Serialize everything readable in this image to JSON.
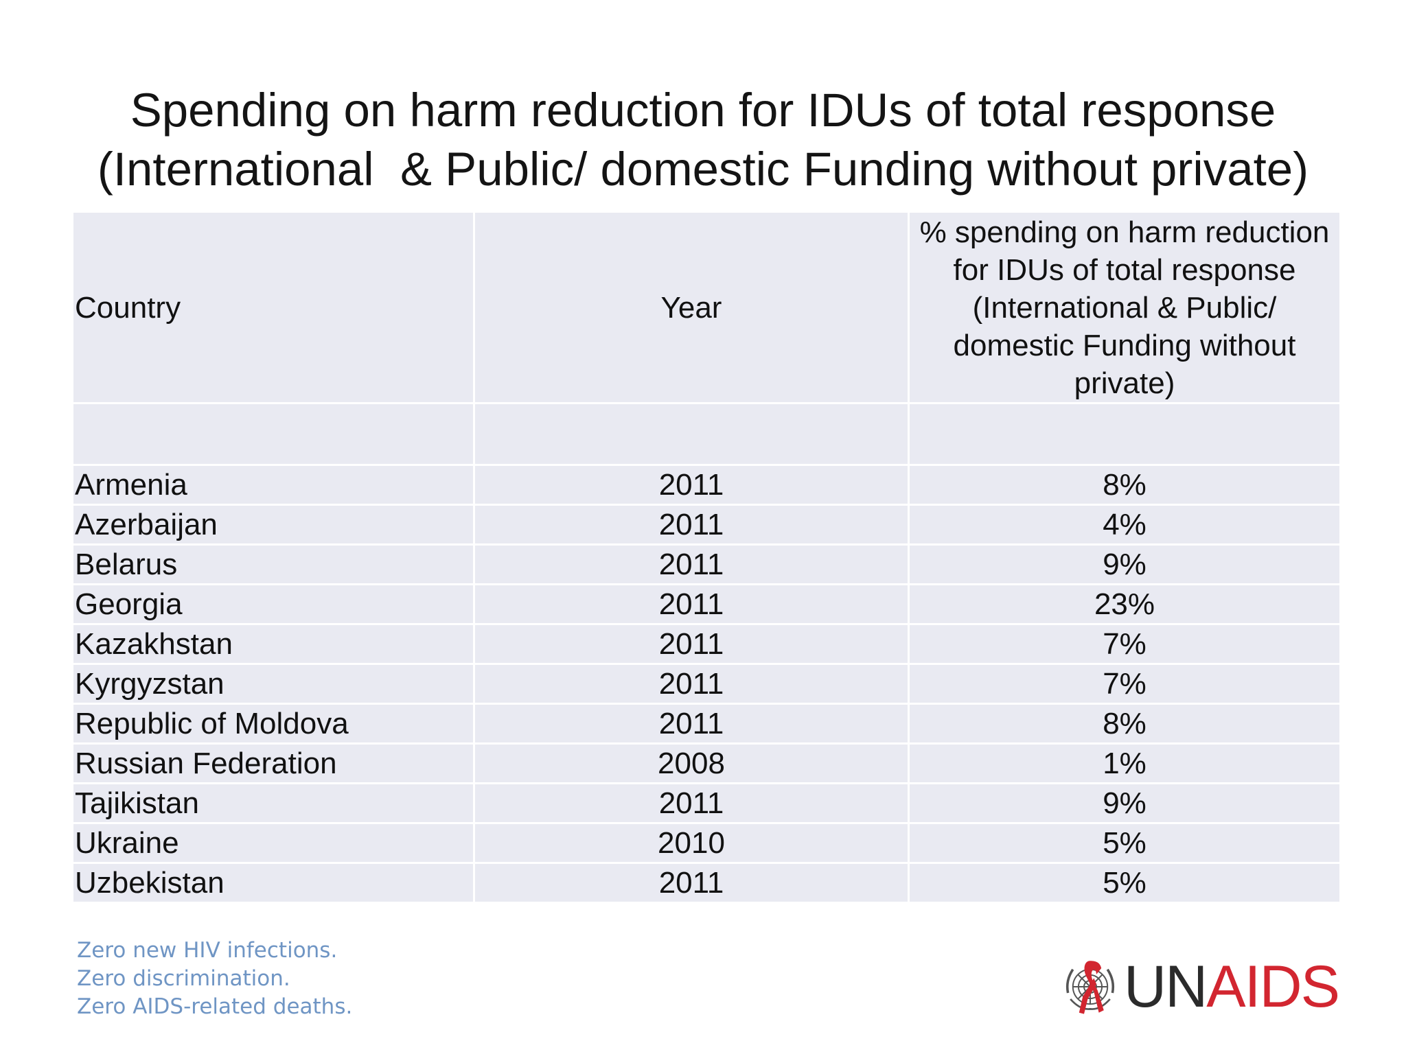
{
  "slide": {
    "title_line1": "Spending on harm reduction for IDUs of total response",
    "title_line2": "(International  & Public/ domestic Funding without private)"
  },
  "table": {
    "headers": {
      "country": "Country",
      "year": "Year",
      "percent": "% spending on harm reduction for IDUs of total response (International  & Public/ domestic Funding without private)"
    },
    "rows": [
      {
        "country": "Armenia",
        "year": "2011",
        "percent": "8%"
      },
      {
        "country": "Azerbaijan",
        "year": "2011",
        "percent": "4%"
      },
      {
        "country": "Belarus",
        "year": "2011",
        "percent": "9%"
      },
      {
        "country": "Georgia",
        "year": "2011",
        "percent": "23%"
      },
      {
        "country": "Kazakhstan",
        "year": "2011",
        "percent": "7%"
      },
      {
        "country": "Kyrgyzstan",
        "year": "2011",
        "percent": "7%"
      },
      {
        "country": "Republic of Moldova",
        "year": "2011",
        "percent": "8%"
      },
      {
        "country": "Russian Federation",
        "year": "2008",
        "percent": "1%"
      },
      {
        "country": "Tajikistan",
        "year": "2011",
        "percent": "9%"
      },
      {
        "country": "Ukraine",
        "year": "2010",
        "percent": "5%"
      },
      {
        "country": "Uzbekistan",
        "year": "2011",
        "percent": "5%"
      }
    ]
  },
  "footer": {
    "tagline": [
      "Zero new HIV infections.",
      "Zero discrimination.",
      "Zero AIDS-related deaths."
    ],
    "logo": {
      "text_un": "UN",
      "text_aids": "AIDS",
      "emblem_icon": "un-emblem-red-ribbon-icon",
      "color_un": "#2b2b2b",
      "color_aids": "#d22630",
      "color_tagline": "#6f95c4"
    }
  }
}
